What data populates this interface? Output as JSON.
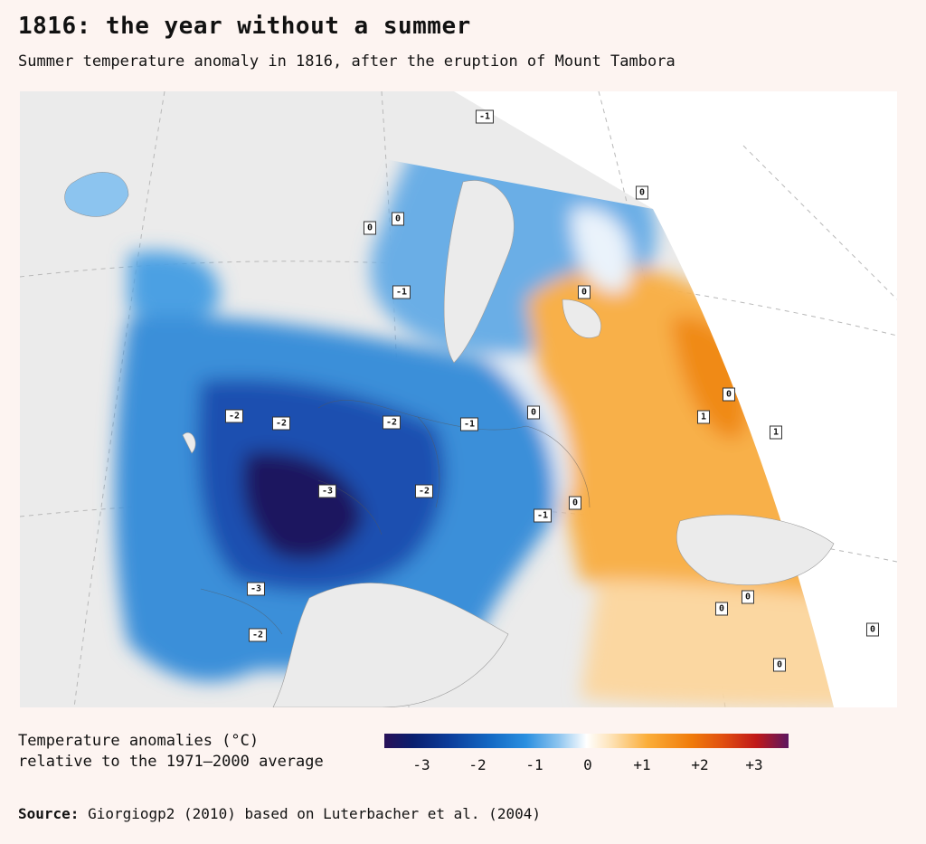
{
  "header": {
    "title": "1816: the year without a summer",
    "subtitle": "Summer temperature anomaly in 1816, after the eruption of Mount Tambora"
  },
  "map": {
    "colors": {
      "land": "#ebebeb",
      "very_cold": "#1a155e",
      "cold": "#1a4fb0",
      "cool": "#3b8fd9",
      "mild_cool": "#9ccbef",
      "neutral": "#f5f5f2",
      "warm": "#fcc46a",
      "hot": "#f7a221"
    },
    "labels": [
      "-1",
      "0",
      "0",
      "0",
      "-1",
      "0",
      "0",
      "1",
      "1",
      "-2",
      "-2",
      "-2",
      "-1",
      "0",
      "-3",
      "-2",
      "0",
      "-1",
      "0",
      "0",
      "0",
      "0",
      "-3",
      "-2"
    ]
  },
  "legend": {
    "title_line1": "Temperature anomalies (°C)",
    "title_line2": "relative to the 1971–2000 average",
    "ticks": [
      "-3",
      "-2",
      "-1",
      "0",
      "+1",
      "+2",
      "+3"
    ]
  },
  "source": {
    "label": "Source:",
    "text": " Giorgiogp2 (2010) based on Luterbacher et al. (2004)"
  }
}
